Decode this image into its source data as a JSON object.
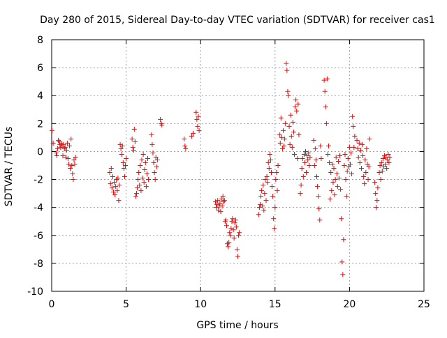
{
  "chart_data": {
    "type": "scatter",
    "title": "Day 280 of 2015, Sidereal Day-to-day VTEC variation (SDTVAR) for receiver cas1",
    "xlabel": "GPS time / hours",
    "ylabel": "SDTVAR / TECUs",
    "xlim": [
      0,
      25
    ],
    "ylim": [
      -10,
      8
    ],
    "xticks": [
      0,
      5,
      10,
      15,
      20,
      25
    ],
    "yticks": [
      -10,
      -8,
      -6,
      -4,
      -2,
      0,
      2,
      4,
      6,
      8
    ],
    "grid": true,
    "marker": "plus",
    "series_color": "#ff0000",
    "series": [
      {
        "name": "SDTVAR",
        "points": [
          [
            0.02,
            1.5
          ],
          [
            0.1,
            0.6
          ],
          [
            0.3,
            -0.1
          ],
          [
            0.35,
            -0.3
          ],
          [
            0.4,
            0.2
          ],
          [
            0.45,
            0.8
          ],
          [
            0.5,
            0.7
          ],
          [
            0.55,
            0.5
          ],
          [
            0.6,
            0.3
          ],
          [
            0.65,
            0.6
          ],
          [
            0.7,
            0.4
          ],
          [
            0.75,
            -0.3
          ],
          [
            0.8,
            0.5
          ],
          [
            0.85,
            0.2
          ],
          [
            0.9,
            0.3
          ],
          [
            0.95,
            -0.4
          ],
          [
            1.0,
            0.1
          ],
          [
            1.05,
            0.6
          ],
          [
            1.1,
            -0.5
          ],
          [
            1.15,
            -0.9
          ],
          [
            1.2,
            0.4
          ],
          [
            1.25,
            -1.2
          ],
          [
            1.3,
            0.9
          ],
          [
            1.35,
            -1.0
          ],
          [
            1.4,
            -1.6
          ],
          [
            1.45,
            -2.0
          ],
          [
            1.5,
            -0.6
          ],
          [
            1.55,
            -0.9
          ],
          [
            1.6,
            -0.4
          ],
          [
            3.9,
            -1.5
          ],
          [
            3.95,
            -2.3
          ],
          [
            4.0,
            -1.2
          ],
          [
            4.05,
            -2.6
          ],
          [
            4.1,
            -1.8
          ],
          [
            4.15,
            -2.9
          ],
          [
            4.2,
            -2.2
          ],
          [
            4.25,
            -3.1
          ],
          [
            4.3,
            -2.5
          ],
          [
            4.35,
            -2.0
          ],
          [
            4.4,
            -2.8
          ],
          [
            4.45,
            -1.9
          ],
          [
            4.5,
            -3.5
          ],
          [
            4.55,
            -2.4
          ],
          [
            4.6,
            0.5
          ],
          [
            4.65,
            0.2
          ],
          [
            4.7,
            -0.2
          ],
          [
            4.75,
            0.4
          ],
          [
            4.8,
            -0.8
          ],
          [
            4.85,
            -1.2
          ],
          [
            4.9,
            -1.8
          ],
          [
            4.95,
            -1.0
          ],
          [
            5.0,
            -0.5
          ],
          [
            5.4,
            0.9
          ],
          [
            5.45,
            0.3
          ],
          [
            5.5,
            0.1
          ],
          [
            5.55,
            1.6
          ],
          [
            5.6,
            0.7
          ],
          [
            5.65,
            -3.2
          ],
          [
            5.7,
            -3.0
          ],
          [
            5.75,
            -2.6
          ],
          [
            5.8,
            -2.0
          ],
          [
            5.85,
            -1.5
          ],
          [
            5.9,
            -2.4
          ],
          [
            5.95,
            -1.0
          ],
          [
            6.0,
            -2.8
          ],
          [
            6.05,
            -0.6
          ],
          [
            6.1,
            -1.9
          ],
          [
            6.15,
            -0.2
          ],
          [
            6.2,
            -2.2
          ],
          [
            6.25,
            -1.3
          ],
          [
            6.3,
            -0.8
          ],
          [
            6.35,
            -2.5
          ],
          [
            6.4,
            -1.6
          ],
          [
            6.45,
            -0.5
          ],
          [
            6.5,
            -2.0
          ],
          [
            6.7,
            1.2
          ],
          [
            6.75,
            0.5
          ],
          [
            6.8,
            -0.1
          ],
          [
            6.85,
            -0.8
          ],
          [
            6.9,
            -1.5
          ],
          [
            6.95,
            -2.0
          ],
          [
            7.0,
            -0.4
          ],
          [
            7.05,
            -1.1
          ],
          [
            7.1,
            -0.6
          ],
          [
            7.3,
            2.3
          ],
          [
            7.35,
            2.0
          ],
          [
            7.4,
            1.9
          ],
          [
            8.9,
            0.9
          ],
          [
            8.95,
            0.4
          ],
          [
            9.0,
            0.2
          ],
          [
            9.4,
            1.1
          ],
          [
            9.5,
            1.3
          ],
          [
            9.7,
            2.8
          ],
          [
            9.75,
            2.3
          ],
          [
            9.8,
            1.8
          ],
          [
            9.85,
            2.5
          ],
          [
            9.9,
            1.5
          ],
          [
            11.0,
            -3.6
          ],
          [
            11.05,
            -4.0
          ],
          [
            11.1,
            -3.8
          ],
          [
            11.15,
            -3.5
          ],
          [
            11.2,
            -4.2
          ],
          [
            11.25,
            -3.9
          ],
          [
            11.3,
            -3.7
          ],
          [
            11.35,
            -4.3
          ],
          [
            11.4,
            -3.4
          ],
          [
            11.45,
            -3.9
          ],
          [
            11.5,
            -3.2
          ],
          [
            11.55,
            -3.6
          ],
          [
            11.6,
            -3.5
          ],
          [
            11.65,
            -5.0
          ],
          [
            11.7,
            -4.9
          ],
          [
            11.75,
            -5.3
          ],
          [
            11.8,
            -6.6
          ],
          [
            11.85,
            -6.8
          ],
          [
            11.9,
            -6.5
          ],
          [
            11.95,
            -5.8
          ],
          [
            12.0,
            -6.0
          ],
          [
            12.05,
            -5.5
          ],
          [
            12.1,
            -5.0
          ],
          [
            12.15,
            -4.8
          ],
          [
            12.2,
            -5.6
          ],
          [
            12.25,
            -6.2
          ],
          [
            12.3,
            -5.1
          ],
          [
            12.35,
            -4.9
          ],
          [
            12.4,
            -5.4
          ],
          [
            12.45,
            -7.0
          ],
          [
            12.5,
            -7.5
          ],
          [
            12.55,
            -6.0
          ],
          [
            12.6,
            -5.8
          ],
          [
            13.9,
            -4.5
          ],
          [
            13.95,
            -4.0
          ],
          [
            14.0,
            -3.8
          ],
          [
            14.05,
            -3.2
          ],
          [
            14.1,
            -2.8
          ],
          [
            14.15,
            -3.9
          ],
          [
            14.2,
            -2.4
          ],
          [
            14.25,
            -4.2
          ],
          [
            14.3,
            -3.0
          ],
          [
            14.35,
            -2.0
          ],
          [
            14.4,
            -3.5
          ],
          [
            14.45,
            -1.8
          ],
          [
            14.5,
            -2.2
          ],
          [
            14.55,
            -0.8
          ],
          [
            14.6,
            -1.2
          ],
          [
            14.65,
            -0.2
          ],
          [
            14.7,
            -0.6
          ],
          [
            14.75,
            -1.5
          ],
          [
            14.8,
            -2.5
          ],
          [
            14.85,
            -3.2
          ],
          [
            14.9,
            -4.8
          ],
          [
            14.95,
            -5.5
          ],
          [
            15.0,
            -4.0
          ],
          [
            15.05,
            -2.0
          ],
          [
            15.1,
            -1.5
          ],
          [
            15.15,
            -2.8
          ],
          [
            15.2,
            -1.0
          ],
          [
            15.3,
            1.2
          ],
          [
            15.35,
            0.6
          ],
          [
            15.4,
            2.4
          ],
          [
            15.45,
            1.0
          ],
          [
            15.5,
            0.2
          ],
          [
            15.55,
            1.5
          ],
          [
            15.6,
            0.4
          ],
          [
            15.65,
            0.9
          ],
          [
            15.7,
            2.0
          ],
          [
            15.75,
            6.3
          ],
          [
            15.8,
            5.8
          ],
          [
            15.85,
            4.3
          ],
          [
            15.9,
            4.0
          ],
          [
            15.95,
            1.8
          ],
          [
            16.0,
            0.5
          ],
          [
            16.05,
            2.6
          ],
          [
            16.1,
            1.1
          ],
          [
            16.15,
            0.3
          ],
          [
            16.2,
            2.1
          ],
          [
            16.25,
            1.4
          ],
          [
            16.3,
            -0.2
          ],
          [
            16.35,
            3.2
          ],
          [
            16.4,
            3.7
          ],
          [
            16.45,
            2.9
          ],
          [
            16.5,
            -0.5
          ],
          [
            16.55,
            3.4
          ],
          [
            16.6,
            1.2
          ],
          [
            16.7,
            -3.0
          ],
          [
            16.75,
            -2.4
          ],
          [
            16.8,
            -1.2
          ],
          [
            16.85,
            -0.5
          ],
          [
            16.9,
            -1.8
          ],
          [
            16.95,
            -0.2
          ],
          [
            17.0,
            -0.8
          ],
          [
            17.05,
            0.0
          ],
          [
            17.1,
            -1.5
          ],
          [
            17.15,
            -0.3
          ],
          [
            17.2,
            -0.6
          ],
          [
            17.25,
            -0.1
          ],
          [
            17.3,
            -1.0
          ],
          [
            17.35,
            -0.4
          ],
          [
            17.6,
            0.8
          ],
          [
            17.65,
            -1.0
          ],
          [
            17.7,
            0.2
          ],
          [
            17.75,
            -0.6
          ],
          [
            17.8,
            -1.8
          ],
          [
            17.85,
            -2.5
          ],
          [
            17.9,
            -3.2
          ],
          [
            17.95,
            -4.1
          ],
          [
            18.0,
            -4.9
          ],
          [
            18.05,
            0.4
          ],
          [
            18.1,
            -0.5
          ],
          [
            18.3,
            5.1
          ],
          [
            18.35,
            4.3
          ],
          [
            18.4,
            3.2
          ],
          [
            18.45,
            2.0
          ],
          [
            18.5,
            5.2
          ],
          [
            18.55,
            -0.2
          ],
          [
            18.6,
            0.4
          ],
          [
            18.65,
            -0.8
          ],
          [
            18.7,
            -3.4
          ],
          [
            18.75,
            -1.5
          ],
          [
            18.8,
            -2.8
          ],
          [
            18.85,
            -0.9
          ],
          [
            18.9,
            -2.2
          ],
          [
            18.95,
            -1.2
          ],
          [
            19.0,
            -3.1
          ],
          [
            19.05,
            -2.0
          ],
          [
            19.1,
            -0.4
          ],
          [
            19.15,
            -1.6
          ],
          [
            19.2,
            -2.5
          ],
          [
            19.25,
            -0.7
          ],
          [
            19.3,
            -1.9
          ],
          [
            19.35,
            -0.3
          ],
          [
            19.4,
            -2.7
          ],
          [
            19.45,
            -4.8
          ],
          [
            19.5,
            -7.9
          ],
          [
            19.55,
            -8.8
          ],
          [
            19.6,
            -6.3
          ],
          [
            19.65,
            -1.0
          ],
          [
            19.7,
            -0.2
          ],
          [
            19.75,
            -2.0
          ],
          [
            19.8,
            -3.2
          ],
          [
            19.85,
            -1.4
          ],
          [
            19.9,
            -0.5
          ],
          [
            19.95,
            -1.1
          ],
          [
            20.0,
            0.3
          ],
          [
            20.05,
            -0.9
          ],
          [
            20.1,
            -0.1
          ],
          [
            20.15,
            -1.6
          ],
          [
            20.2,
            2.5
          ],
          [
            20.25,
            1.8
          ],
          [
            20.3,
            0.3
          ],
          [
            20.35,
            1.1
          ],
          [
            20.5,
            0.8
          ],
          [
            20.55,
            0.2
          ],
          [
            20.6,
            -0.4
          ],
          [
            20.65,
            0.6
          ],
          [
            20.7,
            -0.8
          ],
          [
            20.75,
            0.1
          ],
          [
            20.8,
            -1.2
          ],
          [
            20.85,
            0.5
          ],
          [
            20.9,
            -0.3
          ],
          [
            20.95,
            -1.8
          ],
          [
            21.0,
            -2.3
          ],
          [
            21.05,
            -0.6
          ],
          [
            21.1,
            -1.5
          ],
          [
            21.15,
            0.2
          ],
          [
            21.2,
            -0.9
          ],
          [
            21.25,
            -2.0
          ],
          [
            21.3,
            -1.1
          ],
          [
            21.35,
            0.9
          ],
          [
            21.7,
            -2.2
          ],
          [
            21.75,
            -3.0
          ],
          [
            21.8,
            -4.0
          ],
          [
            21.85,
            -3.5
          ],
          [
            21.9,
            -2.6
          ],
          [
            22.0,
            -1.5
          ],
          [
            22.05,
            -1.0
          ],
          [
            22.1,
            -2.0
          ],
          [
            22.15,
            -0.8
          ],
          [
            22.2,
            -1.4
          ],
          [
            22.25,
            -0.5
          ],
          [
            22.3,
            -1.1
          ],
          [
            22.35,
            -0.3
          ],
          [
            22.4,
            -0.9
          ],
          [
            22.45,
            -0.4
          ],
          [
            22.5,
            -1.2
          ],
          [
            22.55,
            -0.6
          ],
          [
            22.6,
            -0.2
          ],
          [
            22.65,
            -0.8
          ],
          [
            22.7,
            -0.4
          ]
        ]
      }
    ]
  }
}
